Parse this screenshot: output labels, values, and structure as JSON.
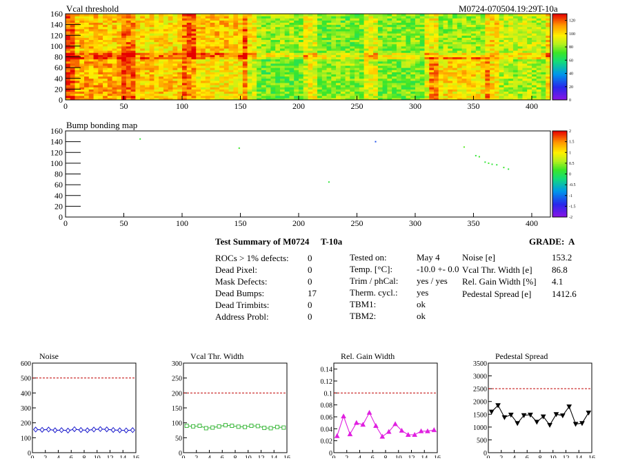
{
  "vcal_map": {
    "title": "Vcal threshold",
    "label": "M0724-070504.19:29T-10a",
    "chart_data": {
      "type": "heatmap",
      "title": "Vcal threshold",
      "x_range": [
        0,
        416
      ],
      "y_range": [
        0,
        160
      ],
      "x_ticks": [
        "0",
        "50",
        "100",
        "150",
        "200",
        "250",
        "300",
        "350",
        "400"
      ],
      "y_ticks": [
        "0",
        "20",
        "40",
        "60",
        "80",
        "100",
        "120",
        "140",
        "160"
      ],
      "z_range": [
        0,
        130
      ],
      "z_ticks": [
        "0",
        "20",
        "40",
        "60",
        "80",
        "100",
        "120"
      ],
      "roc_mean": [
        [
          108,
          104,
          98,
          75,
          80,
          78,
          100,
          85
        ],
        [
          104,
          100,
          104,
          82,
          77,
          79,
          82,
          88
        ]
      ]
    }
  },
  "bump_map": {
    "title": "Bump bonding map",
    "chart_data": {
      "type": "scatter",
      "title": "Bump bonding map",
      "x_range": [
        0,
        416
      ],
      "y_range": [
        0,
        160
      ],
      "x_ticks": [
        "0",
        "50",
        "100",
        "150",
        "200",
        "250",
        "300",
        "350",
        "400"
      ],
      "y_ticks": [
        "0",
        "20",
        "40",
        "60",
        "80",
        "100",
        "120",
        "140",
        "160"
      ],
      "z_range": [
        -2,
        2
      ],
      "z_ticks": [
        "2",
        "1.5",
        "1",
        "0.5",
        "0",
        "-0.5",
        "-1",
        "-1.5",
        "-2"
      ],
      "points": [
        {
          "x": 64,
          "y": 145,
          "z": 0.1
        },
        {
          "x": 149,
          "y": 128,
          "z": 0.2
        },
        {
          "x": 226,
          "y": 65,
          "z": 0.1
        },
        {
          "x": 266,
          "y": 140,
          "z": -1.2
        },
        {
          "x": 342,
          "y": 130,
          "z": 0.3
        },
        {
          "x": 352,
          "y": 114,
          "z": 0.1
        },
        {
          "x": 355,
          "y": 112,
          "z": 0.2
        },
        {
          "x": 360,
          "y": 102,
          "z": 0.1
        },
        {
          "x": 363,
          "y": 100,
          "z": 0.2
        },
        {
          "x": 366,
          "y": 98,
          "z": 0.1
        },
        {
          "x": 370,
          "y": 97,
          "z": 0.1
        },
        {
          "x": 376,
          "y": 92,
          "z": 0.2
        },
        {
          "x": 380,
          "y": 89,
          "z": 0.1
        }
      ]
    }
  },
  "summary": {
    "title": "Test Summary of M0724",
    "test_id": "T-10a",
    "grade": "GRADE:  A",
    "col1": [
      {
        "label": "ROCs > 1% defects:",
        "value": "0"
      },
      {
        "label": "Dead Pixel:",
        "value": "0"
      },
      {
        "label": "Mask Defects:",
        "value": "0"
      },
      {
        "label": "Dead Bumps:",
        "value": "17"
      },
      {
        "label": "Dead Trimbits:",
        "value": "0"
      },
      {
        "label": "Address Probl:",
        "value": "0"
      }
    ],
    "col2": [
      {
        "label": "Tested on:",
        "value": "May 4"
      },
      {
        "label": "Temp. [°C]:",
        "value": "-10.0 +- 0.0"
      },
      {
        "label": "Trim / phCal:",
        "value": "yes / yes"
      },
      {
        "label": "Therm. cycl.:",
        "value": "yes"
      },
      {
        "label": "TBM1:",
        "value": "ok"
      },
      {
        "label": "TBM2:",
        "value": "ok"
      }
    ],
    "col3": [
      {
        "label": "Noise [e]",
        "value": "153.2"
      },
      {
        "label": "Vcal Thr. Width [e]",
        "value": "86.8"
      },
      {
        "label": "Rel. Gain Width [%]",
        "value": "4.1"
      },
      {
        "label": "Pedestal Spread [e]",
        "value": "1412.6"
      }
    ]
  },
  "chart_data": [
    {
      "type": "line",
      "title": "Noise",
      "color": "#1a1acc",
      "marker": "diamond",
      "x": [
        0,
        1,
        2,
        3,
        4,
        5,
        6,
        7,
        8,
        9,
        10,
        11,
        12,
        13,
        14,
        15
      ],
      "values": [
        155,
        153,
        155,
        150,
        151,
        148,
        157,
        152,
        150,
        155,
        158,
        156,
        152,
        150,
        149,
        151
      ],
      "ylim": [
        0,
        600
      ],
      "y_ticks": [
        0,
        100,
        200,
        300,
        400,
        500,
        600
      ],
      "y_tick_labels": [
        "0",
        "100",
        "200",
        "300",
        "400",
        "500",
        "600"
      ],
      "x_tick_labels": [
        "0",
        "2",
        "4",
        "6",
        "8",
        "10",
        "12",
        "14",
        "16"
      ],
      "limit": 500
    },
    {
      "type": "line",
      "title": "Vcal Thr. Width",
      "color": "#3db83d",
      "marker": "square",
      "x": [
        0,
        1,
        2,
        3,
        4,
        5,
        6,
        7,
        8,
        9,
        10,
        11,
        12,
        13,
        14,
        15
      ],
      "values": [
        90,
        88,
        90,
        82,
        84,
        88,
        92,
        90,
        87,
        86,
        90,
        89,
        83,
        82,
        86,
        84
      ],
      "ylim": [
        0,
        300
      ],
      "y_ticks": [
        0,
        50,
        100,
        150,
        200,
        250,
        300
      ],
      "y_tick_labels": [
        "0",
        "50",
        "100",
        "150",
        "200",
        "250",
        "300"
      ],
      "x_tick_labels": [
        "0",
        "2",
        "4",
        "6",
        "8",
        "10",
        "12",
        "14",
        "16"
      ],
      "limit": 200
    },
    {
      "type": "line",
      "title": "Rel. Gain Width",
      "color": "#e020e0",
      "marker": "triangle",
      "x": [
        0,
        1,
        2,
        3,
        4,
        5,
        6,
        7,
        8,
        9,
        10,
        11,
        12,
        13,
        14,
        15
      ],
      "values": [
        0.028,
        0.061,
        0.031,
        0.05,
        0.047,
        0.067,
        0.045,
        0.027,
        0.035,
        0.048,
        0.037,
        0.03,
        0.03,
        0.036,
        0.036,
        0.038
      ],
      "ylim": [
        0,
        0.15
      ],
      "y_ticks": [
        0,
        0.02,
        0.04,
        0.06,
        0.08,
        0.1,
        0.12,
        0.14
      ],
      "y_tick_labels": [
        "0",
        "0.02",
        "0.04",
        "0.06",
        "0.08",
        "0.1",
        "0.12",
        "0.14"
      ],
      "x_tick_labels": [
        "0",
        "2",
        "4",
        "6",
        "8",
        "10",
        "12",
        "14",
        "16"
      ],
      "limit": 0.1
    },
    {
      "type": "line",
      "title": "Pedestal Spread",
      "color": "#000000",
      "marker": "triangle-down",
      "x": [
        0,
        1,
        2,
        3,
        4,
        5,
        6,
        7,
        8,
        9,
        10,
        11,
        12,
        13,
        14,
        15
      ],
      "values": [
        1600,
        1850,
        1380,
        1480,
        1150,
        1460,
        1480,
        1200,
        1410,
        1080,
        1500,
        1450,
        1800,
        1120,
        1150,
        1560
      ],
      "ylim": [
        0,
        3500
      ],
      "y_ticks": [
        0,
        500,
        1000,
        1500,
        2000,
        2500,
        3000,
        3500
      ],
      "y_tick_labels": [
        "0",
        "500",
        "1000",
        "1500",
        "2000",
        "2500",
        "3000",
        "3500"
      ],
      "x_tick_labels": [
        "0",
        "2",
        "4",
        "6",
        "8",
        "10",
        "12",
        "14",
        "16"
      ],
      "limit": 2500
    }
  ]
}
